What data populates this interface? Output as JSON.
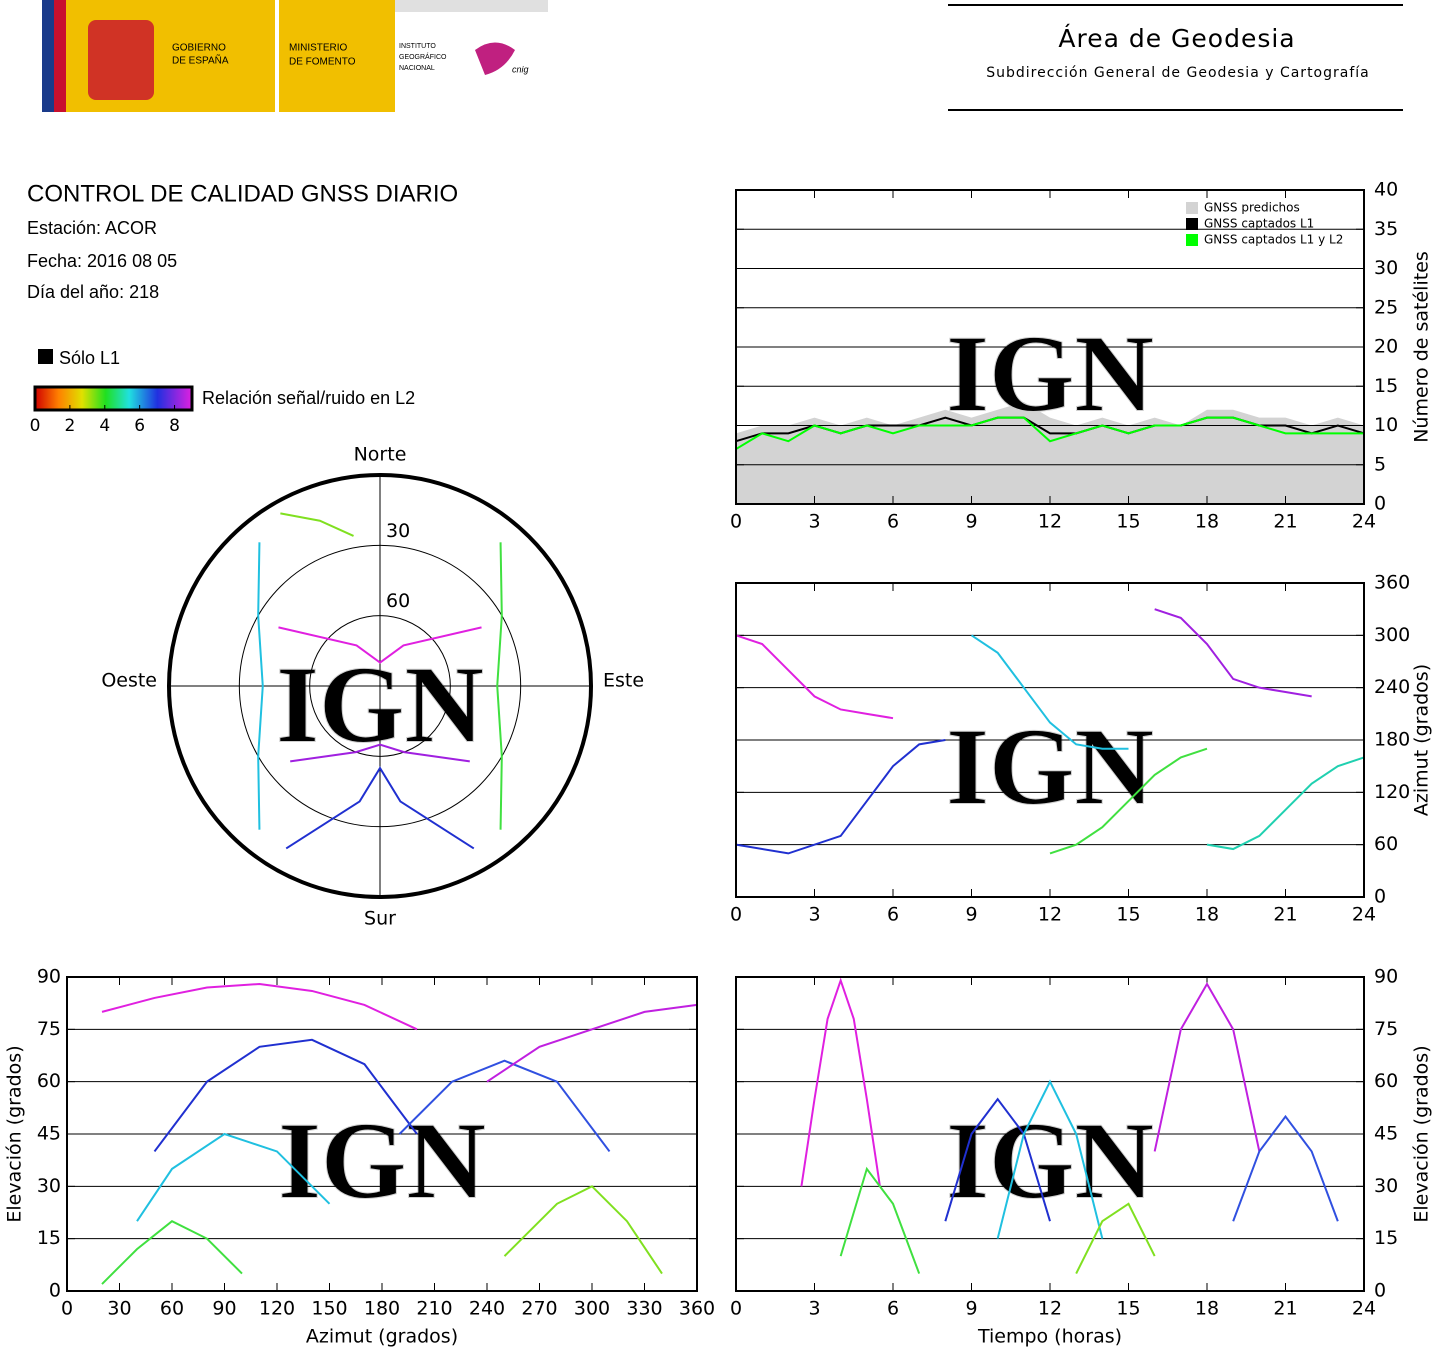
{
  "header": {
    "gov": [
      "GOBIERNO",
      "DE ESPAÑA"
    ],
    "ministry": [
      "MINISTERIO",
      "DE FOMENTO"
    ],
    "institute": [
      "INSTITUTO",
      "GEOGRÁFICO",
      "NACIONAL"
    ],
    "cnig": "cnig",
    "area": "Área de Geodesia",
    "subarea": "Subdirección General de Geodesia y Cartografía"
  },
  "report": {
    "title": "CONTROL DE CALIDAD GNSS DIARIO",
    "station": "Estación: ACOR",
    "date": "Fecha: 2016 08 05",
    "doy": "Día del año: 218",
    "only_l1": "Sólo L1",
    "snr_label": "Relación señal/ruido en L2",
    "snr_ticks": [
      0,
      2,
      4,
      6,
      8
    ]
  },
  "chart_data": [
    {
      "type": "polar",
      "watermark": "IGN",
      "directions": {
        "north": "Norte",
        "south": "Sur",
        "east": "Este",
        "west": "Oeste"
      },
      "rlim": [
        90,
        0
      ],
      "rticks": [
        30,
        60
      ],
      "series": [
        {
          "color": "#e020e0",
          "az": [
            300,
            330,
            0,
            30,
            60
          ],
          "values": [
            40,
            70,
            80,
            70,
            40
          ]
        },
        {
          "color": "#2030d0",
          "az": [
            210,
            190,
            180,
            170,
            150
          ],
          "values": [
            10,
            40,
            55,
            40,
            10
          ]
        },
        {
          "color": "#20c0e0",
          "az": [
            320,
            300,
            270,
            240,
            220
          ],
          "values": [
            10,
            30,
            40,
            30,
            10
          ]
        },
        {
          "color": "#40e040",
          "az": [
            40,
            60,
            90,
            120,
            140
          ],
          "values": [
            10,
            30,
            40,
            30,
            10
          ]
        },
        {
          "color": "#a020e0",
          "az": [
            230,
            200,
            180,
            160,
            130
          ],
          "values": [
            40,
            60,
            65,
            60,
            40
          ]
        },
        {
          "color": "#80e020",
          "az": [
            330,
            340,
            350
          ],
          "values": [
            5,
            15,
            25
          ]
        }
      ]
    },
    {
      "type": "satcount",
      "watermark": "IGN",
      "ylabel": "Número de satélites",
      "yaxis": "right",
      "grid": true,
      "legend": "top-right",
      "x": [
        0,
        1,
        2,
        3,
        4,
        5,
        6,
        7,
        8,
        9,
        10,
        11,
        12,
        13,
        14,
        15,
        16,
        17,
        18,
        19,
        20,
        21,
        22,
        23,
        24
      ],
      "xlim": [
        0,
        24
      ],
      "xticks": [
        0,
        3,
        6,
        9,
        12,
        15,
        18,
        21,
        24
      ],
      "ylim": [
        0,
        40
      ],
      "yticks": [
        0,
        5,
        10,
        15,
        20,
        25,
        30,
        35,
        40
      ],
      "series": [
        {
          "name": "GNSS predichos",
          "color": "#d3d3d3",
          "values": [
            9,
            10,
            10,
            11,
            10,
            11,
            10,
            11,
            12,
            11,
            12,
            13,
            11,
            10,
            11,
            10,
            11,
            10,
            12,
            12,
            11,
            11,
            10,
            11,
            10
          ]
        },
        {
          "name": "GNSS captados L1",
          "color": "#000000",
          "values": [
            8,
            9,
            9,
            10,
            9,
            10,
            10,
            10,
            11,
            10,
            11,
            11,
            9,
            9,
            10,
            9,
            10,
            10,
            11,
            11,
            10,
            10,
            9,
            10,
            9
          ]
        },
        {
          "name": "GNSS captados L1 y L2",
          "color": "#00ff00",
          "values": [
            7,
            9,
            8,
            10,
            9,
            10,
            9,
            10,
            10,
            10,
            11,
            11,
            8,
            9,
            10,
            9,
            10,
            10,
            11,
            11,
            10,
            9,
            9,
            9,
            9
          ]
        }
      ]
    },
    {
      "type": "line",
      "watermark": "IGN",
      "ylabel": "Azimut (grados)",
      "yaxis": "right",
      "grid": true,
      "xlim": [
        0,
        24
      ],
      "xticks": [
        0,
        3,
        6,
        9,
        12,
        15,
        18,
        21,
        24
      ],
      "ylim": [
        0,
        360
      ],
      "yticks": [
        0,
        60,
        120,
        180,
        240,
        300,
        360
      ],
      "series": [
        {
          "color": "#e020e0",
          "x": [
            0,
            1,
            2,
            3,
            4,
            5,
            6
          ],
          "values": [
            300,
            290,
            260,
            230,
            215,
            210,
            205
          ]
        },
        {
          "color": "#2030d0",
          "x": [
            0,
            2,
            4,
            5,
            6,
            7,
            8
          ],
          "values": [
            60,
            50,
            70,
            110,
            150,
            175,
            180
          ]
        },
        {
          "color": "#20c0e0",
          "x": [
            9,
            10,
            11,
            12,
            13,
            14,
            15
          ],
          "values": [
            300,
            280,
            240,
            200,
            175,
            170,
            170
          ]
        },
        {
          "color": "#40e040",
          "x": [
            12,
            13,
            14,
            15,
            16,
            17,
            18
          ],
          "values": [
            50,
            60,
            80,
            110,
            140,
            160,
            170
          ]
        },
        {
          "color": "#a020e0",
          "x": [
            16,
            17,
            18,
            19,
            20,
            21,
            22
          ],
          "values": [
            330,
            320,
            290,
            250,
            240,
            235,
            230
          ]
        },
        {
          "color": "#20d0b0",
          "x": [
            18,
            19,
            20,
            21,
            22,
            23,
            24
          ],
          "values": [
            60,
            55,
            70,
            100,
            130,
            150,
            160
          ]
        }
      ]
    },
    {
      "type": "line",
      "watermark": "IGN",
      "xlabel": "Azimut (grados)",
      "ylabel": "Elevación (grados)",
      "yaxis": "left",
      "grid": true,
      "xlim": [
        0,
        360
      ],
      "xticks": [
        0,
        30,
        60,
        90,
        120,
        150,
        180,
        210,
        240,
        270,
        300,
        330,
        360
      ],
      "ylim": [
        0,
        90
      ],
      "yticks": [
        0,
        15,
        30,
        45,
        60,
        75,
        90
      ],
      "series": [
        {
          "color": "#e020e0",
          "x": [
            20,
            50,
            80,
            110,
            140,
            170,
            200
          ],
          "values": [
            80,
            84,
            87,
            88,
            86,
            82,
            75
          ]
        },
        {
          "color": "#2030d0",
          "x": [
            50,
            80,
            110,
            140,
            170,
            200
          ],
          "values": [
            40,
            60,
            70,
            72,
            65,
            45
          ]
        },
        {
          "color": "#20c0e0",
          "x": [
            40,
            60,
            90,
            120,
            150
          ],
          "values": [
            20,
            35,
            45,
            40,
            25
          ]
        },
        {
          "color": "#40e040",
          "x": [
            20,
            40,
            60,
            80,
            100
          ],
          "values": [
            2,
            12,
            20,
            15,
            5
          ]
        },
        {
          "color": "#3050e0",
          "x": [
            190,
            220,
            250,
            280,
            310
          ],
          "values": [
            45,
            60,
            66,
            60,
            40
          ]
        },
        {
          "color": "#80e020",
          "x": [
            250,
            280,
            300,
            320,
            340
          ],
          "values": [
            10,
            25,
            30,
            20,
            5
          ]
        },
        {
          "color": "#c020e0",
          "x": [
            240,
            270,
            300,
            330,
            360
          ],
          "values": [
            60,
            70,
            75,
            80,
            82
          ]
        }
      ]
    },
    {
      "type": "line",
      "watermark": "IGN",
      "xlabel": "Tiempo (horas)",
      "ylabel": "Elevación (grados)",
      "yaxis": "right",
      "grid": true,
      "xlim": [
        0,
        24
      ],
      "xticks": [
        0,
        3,
        6,
        9,
        12,
        15,
        18,
        21,
        24
      ],
      "ylim": [
        0,
        90
      ],
      "yticks": [
        0,
        15,
        30,
        45,
        60,
        75,
        90
      ],
      "series": [
        {
          "color": "#e020e0",
          "x": [
            2.5,
            3,
            3.5,
            4,
            4.5,
            5,
            5.5
          ],
          "values": [
            30,
            55,
            78,
            89,
            78,
            55,
            30
          ]
        },
        {
          "color": "#2030d0",
          "x": [
            8,
            9,
            10,
            11,
            12
          ],
          "values": [
            20,
            45,
            55,
            45,
            20
          ]
        },
        {
          "color": "#20c0e0",
          "x": [
            10,
            11,
            12,
            13,
            14
          ],
          "values": [
            15,
            45,
            60,
            45,
            15
          ]
        },
        {
          "color": "#40e040",
          "x": [
            4,
            5,
            6,
            7
          ],
          "values": [
            10,
            35,
            25,
            5
          ]
        },
        {
          "color": "#c020e0",
          "x": [
            16,
            17,
            18,
            19,
            20
          ],
          "values": [
            40,
            75,
            88,
            75,
            40
          ]
        },
        {
          "color": "#3050e0",
          "x": [
            19,
            20,
            21,
            22,
            23
          ],
          "values": [
            20,
            40,
            50,
            40,
            20
          ]
        },
        {
          "color": "#80e020",
          "x": [
            13,
            14,
            15,
            16
          ],
          "values": [
            5,
            20,
            25,
            10
          ]
        }
      ]
    }
  ]
}
